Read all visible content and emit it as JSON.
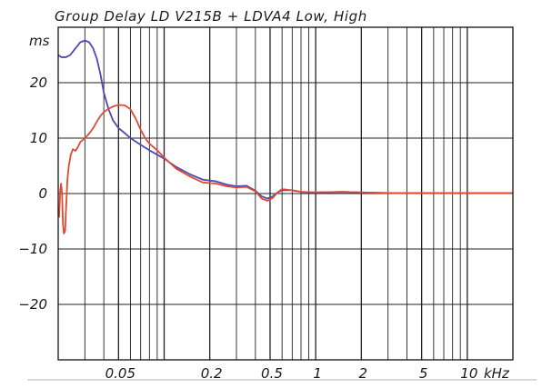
{
  "chart_data": {
    "type": "line",
    "title": "Group Delay LD V215B + LDVA4 Low, High",
    "xlabel": "kHz",
    "ylabel": "ms",
    "x_scale": "log",
    "xlim": [
      0.02,
      20
    ],
    "ylim": [
      -30,
      30
    ],
    "grid": true,
    "x_tick_labels": [
      {
        "value": 0.05,
        "label": "0.05"
      },
      {
        "value": 0.2,
        "label": "0.2"
      },
      {
        "value": 0.5,
        "label": "0.5"
      },
      {
        "value": 1,
        "label": "1"
      },
      {
        "value": 2,
        "label": "2"
      },
      {
        "value": 5,
        "label": "5"
      },
      {
        "value": 10,
        "label": "10"
      }
    ],
    "y_tick_labels": [
      {
        "value": 20,
        "label": "20"
      },
      {
        "value": 10,
        "label": "10"
      },
      {
        "value": 0,
        "label": "0"
      },
      {
        "value": -10,
        "label": "−10"
      },
      {
        "value": -20,
        "label": "−20"
      }
    ],
    "series": [
      {
        "color": "#4a4ab0",
        "points": [
          [
            0.02,
            25.0
          ],
          [
            0.021,
            24.6
          ],
          [
            0.0225,
            24.6
          ],
          [
            0.024,
            25.0
          ],
          [
            0.026,
            26.2
          ],
          [
            0.028,
            27.3
          ],
          [
            0.03,
            27.6
          ],
          [
            0.032,
            27.3
          ],
          [
            0.034,
            26.2
          ],
          [
            0.036,
            24.3
          ],
          [
            0.038,
            21.5
          ],
          [
            0.04,
            18.2
          ],
          [
            0.043,
            15.2
          ],
          [
            0.046,
            13.2
          ],
          [
            0.05,
            11.8
          ],
          [
            0.055,
            10.9
          ],
          [
            0.06,
            10.0
          ],
          [
            0.07,
            8.8
          ],
          [
            0.08,
            7.8
          ],
          [
            0.1,
            6.3
          ],
          [
            0.12,
            4.8
          ],
          [
            0.15,
            3.4
          ],
          [
            0.18,
            2.5
          ],
          [
            0.22,
            2.2
          ],
          [
            0.26,
            1.6
          ],
          [
            0.3,
            1.3
          ],
          [
            0.35,
            1.4
          ],
          [
            0.4,
            0.5
          ],
          [
            0.44,
            -0.5
          ],
          [
            0.48,
            -0.9
          ],
          [
            0.52,
            -0.5
          ],
          [
            0.56,
            0.2
          ],
          [
            0.6,
            0.6
          ],
          [
            0.7,
            0.6
          ],
          [
            0.8,
            0.3
          ],
          [
            1.0,
            0.2
          ],
          [
            1.5,
            0.3
          ],
          [
            2.0,
            0.2
          ],
          [
            3.0,
            0.1
          ],
          [
            5.0,
            0.1
          ],
          [
            10.0,
            0.1
          ],
          [
            20.0,
            0.1
          ]
        ]
      },
      {
        "color": "#e04a30",
        "points": [
          [
            0.02,
            -3.0
          ],
          [
            0.0203,
            -4.2
          ],
          [
            0.0206,
            0.5
          ],
          [
            0.0209,
            1.8
          ],
          [
            0.0212,
            0.0
          ],
          [
            0.0215,
            -5.5
          ],
          [
            0.0218,
            -7.2
          ],
          [
            0.0222,
            -6.8
          ],
          [
            0.0226,
            -2.0
          ],
          [
            0.023,
            2.5
          ],
          [
            0.0235,
            5.0
          ],
          [
            0.0242,
            7.0
          ],
          [
            0.025,
            8.0
          ],
          [
            0.026,
            7.7
          ],
          [
            0.027,
            8.4
          ],
          [
            0.028,
            9.3
          ],
          [
            0.03,
            10.0
          ],
          [
            0.032,
            10.8
          ],
          [
            0.034,
            11.8
          ],
          [
            0.036,
            13.0
          ],
          [
            0.038,
            14.0
          ],
          [
            0.04,
            14.7
          ],
          [
            0.043,
            15.3
          ],
          [
            0.046,
            15.7
          ],
          [
            0.05,
            16.0
          ],
          [
            0.055,
            15.9
          ],
          [
            0.06,
            15.2
          ],
          [
            0.065,
            13.5
          ],
          [
            0.07,
            11.5
          ],
          [
            0.075,
            10.0
          ],
          [
            0.08,
            9.0
          ],
          [
            0.09,
            7.8
          ],
          [
            0.1,
            6.5
          ],
          [
            0.12,
            4.5
          ],
          [
            0.15,
            3.0
          ],
          [
            0.18,
            2.0
          ],
          [
            0.22,
            1.8
          ],
          [
            0.26,
            1.3
          ],
          [
            0.3,
            1.1
          ],
          [
            0.35,
            1.2
          ],
          [
            0.4,
            0.4
          ],
          [
            0.44,
            -0.9
          ],
          [
            0.48,
            -1.3
          ],
          [
            0.52,
            -0.8
          ],
          [
            0.56,
            0.2
          ],
          [
            0.6,
            0.8
          ],
          [
            0.7,
            0.6
          ],
          [
            0.8,
            0.3
          ],
          [
            1.0,
            0.2
          ],
          [
            1.5,
            0.3
          ],
          [
            2.0,
            0.2
          ],
          [
            3.0,
            0.1
          ],
          [
            5.0,
            0.1
          ],
          [
            10.0,
            0.1
          ],
          [
            20.0,
            0.1
          ]
        ]
      }
    ]
  }
}
